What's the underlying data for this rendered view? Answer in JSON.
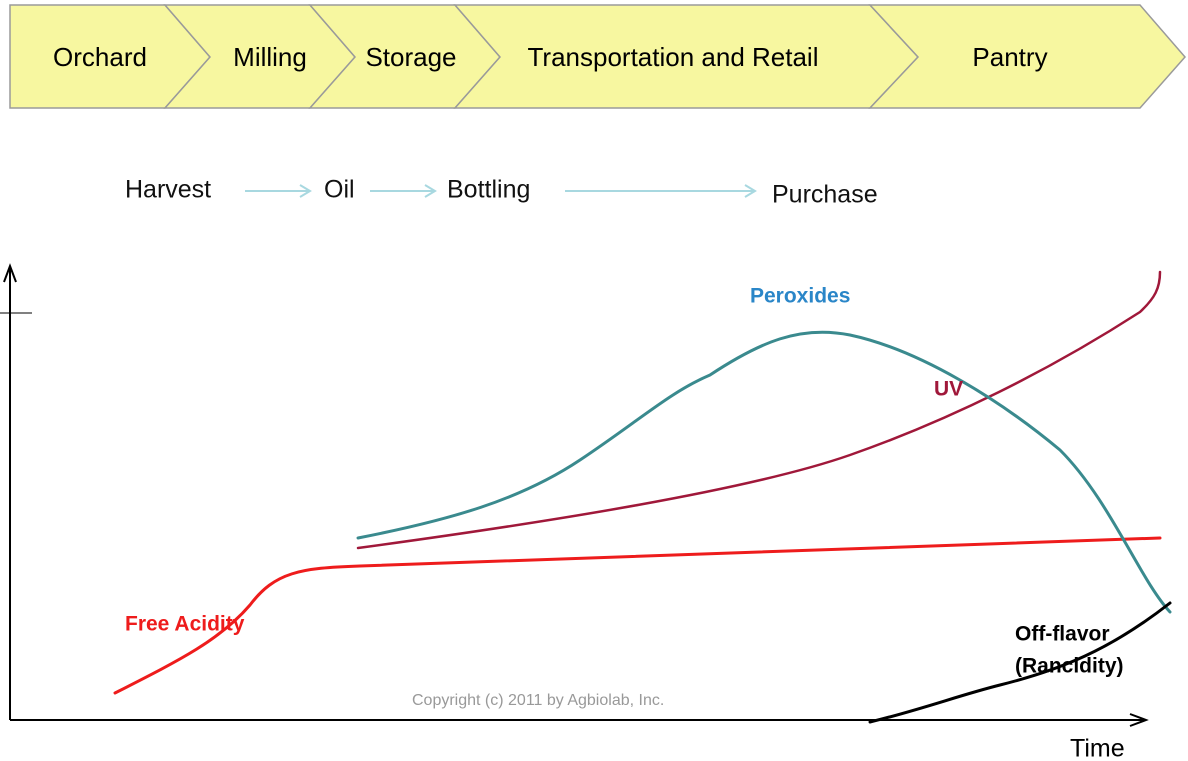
{
  "stages": [
    "Orchard",
    "Milling",
    "Storage",
    "Transportation and Retail",
    "Pantry"
  ],
  "milestones": [
    "Harvest",
    "Oil",
    "Bottling",
    "Purchase"
  ],
  "curves": {
    "peroxides": "Peroxides",
    "uv": "UV",
    "free_acidity": "Free Acidity",
    "off_flavor": [
      "Off-flavor",
      "(Rancidity)"
    ]
  },
  "x_axis_label": "Time",
  "copyright": "Copyright (c) 2011 by Agbiolab, Inc."
}
